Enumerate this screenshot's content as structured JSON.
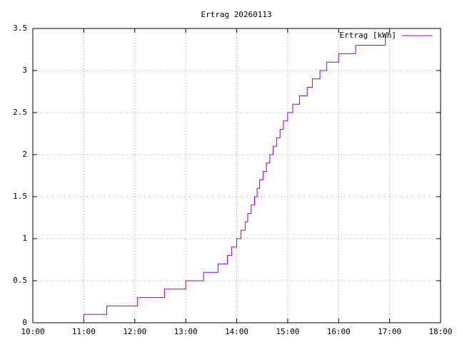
{
  "chart_data": {
    "type": "line",
    "title": "Ertrag 20260113",
    "x": [
      "11:00",
      "11:00",
      "11:27",
      "12:03",
      "12:35",
      "13:00",
      "13:21",
      "13:38",
      "13:49",
      "13:54",
      "14:00",
      "14:05",
      "14:10",
      "14:13",
      "14:17",
      "14:21",
      "14:24",
      "14:27",
      "14:31",
      "14:35",
      "14:39",
      "14:43",
      "14:47",
      "14:51",
      "14:55",
      "15:00",
      "15:06",
      "15:14",
      "15:23",
      "15:29",
      "15:38",
      "15:46",
      "16:00",
      "16:20",
      "16:55"
    ],
    "series": [
      {
        "name": "Ertrag [kWh]",
        "color": "#9400d3",
        "values": [
          0,
          0.1,
          0.2,
          0.3,
          0.4,
          0.5,
          0.6,
          0.7,
          0.8,
          0.9,
          1.0,
          1.1,
          1.2,
          1.3,
          1.4,
          1.5,
          1.6,
          1.7,
          1.8,
          1.9,
          2.0,
          2.1,
          2.2,
          2.3,
          2.4,
          2.5,
          2.6,
          2.7,
          2.8,
          2.9,
          3.0,
          3.1,
          3.2,
          3.3,
          3.4
        ]
      }
    ],
    "step": true,
    "xlim": [
      "10:00",
      "18:00"
    ],
    "xticks": [
      "10:00",
      "11:00",
      "12:00",
      "13:00",
      "14:00",
      "15:00",
      "16:00",
      "17:00",
      "18:00"
    ],
    "ylim": [
      0,
      3.5
    ],
    "yticks": [
      0,
      0.5,
      1,
      1.5,
      2,
      2.5,
      3,
      3.5
    ],
    "grid": true,
    "legend": "top-right"
  }
}
